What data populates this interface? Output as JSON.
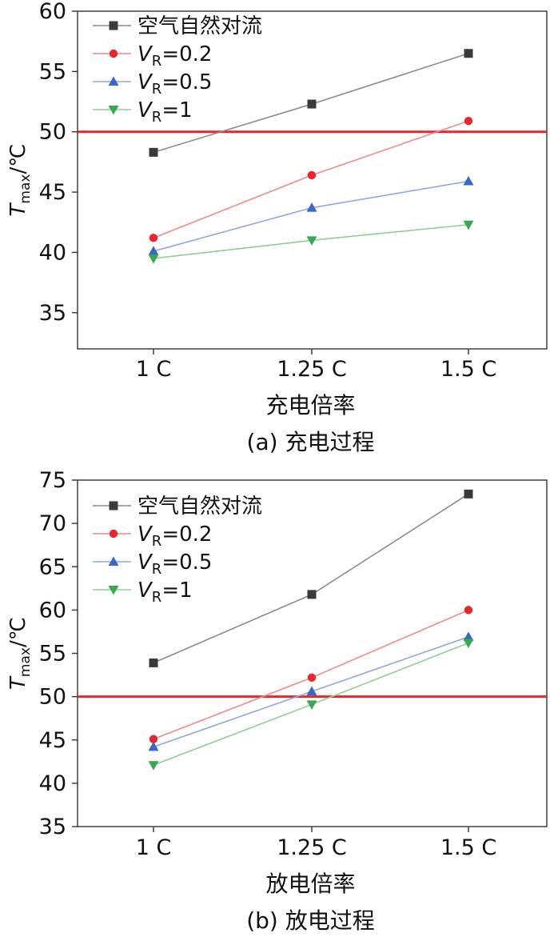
{
  "chart_data": [
    {
      "type": "line",
      "caption": "(a) 充电过程",
      "xlabel": "充电倍率",
      "ylabel": {
        "symbol": "T",
        "subscript": "max",
        "unit": "/℃"
      },
      "categories": [
        "1 C",
        "1.25 C",
        "1.5 C"
      ],
      "ylim": [
        32,
        60
      ],
      "yticks": [
        35,
        40,
        45,
        50,
        55,
        60
      ],
      "reference_line": {
        "y": 50,
        "color": "#e8262b"
      },
      "legend_position": "top-left",
      "series": [
        {
          "name": "空气自然对流",
          "legend": {
            "text": "空气自然对流"
          },
          "values": [
            48.3,
            52.3,
            56.5
          ],
          "color": "#8c8c8c",
          "marker_color": "#3a3a3a",
          "marker": "square"
        },
        {
          "name": "VR=0.2",
          "legend": {
            "v": "V",
            "sub": "R",
            "rest": "=0.2"
          },
          "values": [
            41.2,
            46.4,
            50.9
          ],
          "color": "#f08a8a",
          "marker_color": "#e8262b",
          "marker": "circle"
        },
        {
          "name": "VR=0.5",
          "legend": {
            "v": "V",
            "sub": "R",
            "rest": "=0.5"
          },
          "values": [
            40.1,
            43.7,
            45.9
          ],
          "color": "#8ea8e0",
          "marker_color": "#3a68c8",
          "marker": "triangle-up"
        },
        {
          "name": "VR=1",
          "legend": {
            "v": "V",
            "sub": "R",
            "rest": "=1"
          },
          "values": [
            39.5,
            41.0,
            42.3
          ],
          "color": "#8fcf95",
          "marker_color": "#3aa850",
          "marker": "triangle-down"
        }
      ]
    },
    {
      "type": "line",
      "caption": "(b) 放电过程",
      "xlabel": "放电倍率",
      "ylabel": {
        "symbol": "T",
        "subscript": "max",
        "unit": "/℃"
      },
      "categories": [
        "1 C",
        "1.25 C",
        "1.5 C"
      ],
      "ylim": [
        35,
        75
      ],
      "yticks": [
        35,
        40,
        45,
        50,
        55,
        60,
        65,
        70,
        75
      ],
      "reference_line": {
        "y": 50,
        "color": "#e8262b"
      },
      "legend_position": "top-left",
      "series": [
        {
          "name": "空气自然对流",
          "legend": {
            "text": "空气自然对流"
          },
          "values": [
            53.9,
            61.8,
            73.4
          ],
          "color": "#8c8c8c",
          "marker_color": "#3a3a3a",
          "marker": "square"
        },
        {
          "name": "VR=0.2",
          "legend": {
            "v": "V",
            "sub": "R",
            "rest": "=0.2"
          },
          "values": [
            45.1,
            52.2,
            60.0
          ],
          "color": "#f08a8a",
          "marker_color": "#e8262b",
          "marker": "circle"
        },
        {
          "name": "VR=0.5",
          "legend": {
            "v": "V",
            "sub": "R",
            "rest": "=0.5"
          },
          "values": [
            44.2,
            50.6,
            56.9
          ],
          "color": "#8ea8e0",
          "marker_color": "#3a68c8",
          "marker": "triangle-up"
        },
        {
          "name": "VR=1",
          "legend": {
            "v": "V",
            "sub": "R",
            "rest": "=1"
          },
          "values": [
            42.1,
            49.1,
            56.2
          ],
          "color": "#8fcf95",
          "marker_color": "#3aa850",
          "marker": "triangle-down"
        }
      ]
    }
  ]
}
